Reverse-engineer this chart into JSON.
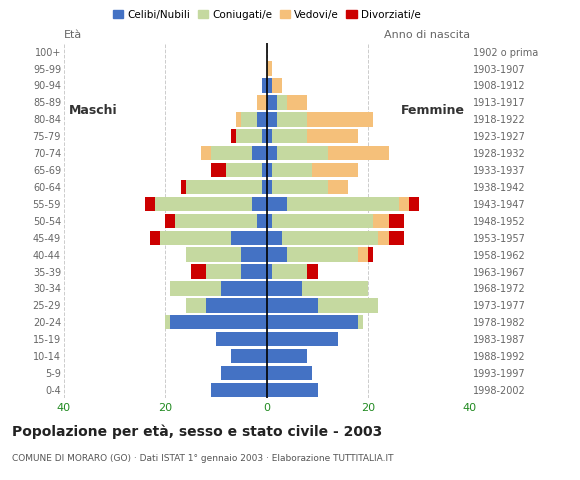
{
  "age_groups": [
    "0-4",
    "5-9",
    "10-14",
    "15-19",
    "20-24",
    "25-29",
    "30-34",
    "35-39",
    "40-44",
    "45-49",
    "50-54",
    "55-59",
    "60-64",
    "65-69",
    "70-74",
    "75-79",
    "80-84",
    "85-89",
    "90-94",
    "95-99",
    "100+"
  ],
  "birth_years": [
    "1998-2002",
    "1993-1997",
    "1988-1992",
    "1983-1987",
    "1978-1982",
    "1973-1977",
    "1968-1972",
    "1963-1967",
    "1958-1962",
    "1953-1957",
    "1948-1952",
    "1943-1947",
    "1938-1942",
    "1933-1937",
    "1928-1932",
    "1923-1927",
    "1918-1922",
    "1913-1917",
    "1908-1912",
    "1903-1907",
    "1902 o prima"
  ],
  "male_celibe": [
    11,
    9,
    7,
    10,
    19,
    12,
    9,
    5,
    5,
    7,
    2,
    3,
    1,
    1,
    3,
    1,
    2,
    0,
    1,
    0,
    0
  ],
  "male_coniugato": [
    0,
    0,
    0,
    0,
    1,
    4,
    10,
    7,
    11,
    14,
    16,
    19,
    15,
    7,
    8,
    5,
    3,
    0,
    0,
    0,
    0
  ],
  "male_vedovo": [
    0,
    0,
    0,
    0,
    0,
    0,
    0,
    0,
    0,
    0,
    0,
    0,
    0,
    0,
    2,
    0,
    1,
    2,
    0,
    0,
    0
  ],
  "male_divorziato": [
    0,
    0,
    0,
    0,
    0,
    0,
    0,
    3,
    0,
    2,
    2,
    2,
    1,
    3,
    0,
    1,
    0,
    0,
    0,
    0,
    0
  ],
  "female_celibe": [
    10,
    9,
    8,
    14,
    18,
    10,
    7,
    1,
    4,
    3,
    1,
    4,
    1,
    1,
    2,
    1,
    2,
    2,
    1,
    0,
    0
  ],
  "female_coniugato": [
    0,
    0,
    0,
    0,
    1,
    12,
    13,
    7,
    14,
    19,
    20,
    22,
    11,
    8,
    10,
    7,
    6,
    2,
    0,
    0,
    0
  ],
  "female_vedovo": [
    0,
    0,
    0,
    0,
    0,
    0,
    0,
    0,
    2,
    2,
    3,
    2,
    4,
    9,
    12,
    10,
    13,
    4,
    2,
    1,
    0
  ],
  "female_divorziato": [
    0,
    0,
    0,
    0,
    0,
    0,
    0,
    2,
    1,
    3,
    3,
    2,
    0,
    0,
    0,
    0,
    0,
    0,
    0,
    0,
    0
  ],
  "color_celibe": "#4472c4",
  "color_coniugato": "#c5d9a0",
  "color_vedovo": "#f5c07a",
  "color_divorziato": "#cc0000",
  "title": "Popolazione per età, sesso e stato civile - 2003",
  "subtitle": "COMUNE DI MORARO (GO) · Dati ISTAT 1° gennaio 2003 · Elaborazione TUTTITALIA.IT",
  "label_eta": "Età",
  "label_anno": "Anno di nascita",
  "label_maschi": "Maschi",
  "label_femmine": "Femmine",
  "legend_celibe": "Celibi/Nubili",
  "legend_coniugato": "Coniugati/e",
  "legend_vedovo": "Vedovi/e",
  "legend_divorziato": "Divorziati/e",
  "xlim": 40,
  "background_color": "#ffffff",
  "grid_color": "#cccccc"
}
